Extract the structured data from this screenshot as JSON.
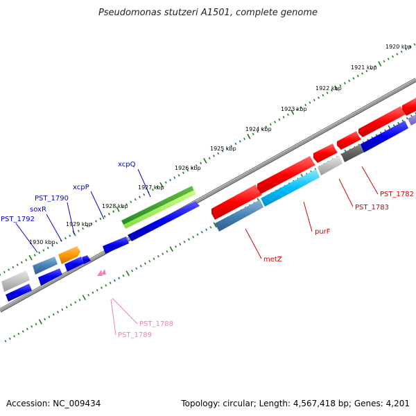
{
  "title": "Pseudomonas stutzeri A1501, complete genome",
  "footer": {
    "accession": "Accession: NC_009434",
    "topology": "Topology: circular; Length: 4,567,418 bp; Genes: 4,201"
  },
  "scale_labels": [
    "1920 kbp",
    "1921 kbp",
    "1922 kbp",
    "1923 kbp",
    "1924 kbp",
    "1925 kbp",
    "1926 kbp",
    "1927 kbp",
    "1928 kbp",
    "1929 kbp",
    "1930 kbp"
  ],
  "gene_labels": [
    {
      "text": "xcpQ",
      "color": "#0000cc"
    },
    {
      "text": "xcpP",
      "color": "#0000cc"
    },
    {
      "text": "PST_1790",
      "color": "#0000cc"
    },
    {
      "text": "soxR",
      "color": "#0000cc"
    },
    {
      "text": "PST_1792",
      "color": "#0000cc"
    },
    {
      "text": "purF",
      "color": "#cc0000"
    },
    {
      "text": "metZ",
      "color": "#cc0000"
    },
    {
      "text": "PST_1783",
      "color": "#cc0000"
    },
    {
      "text": "PST_1782",
      "color": "#cc0000"
    },
    {
      "text": "PST_1788",
      "color": "#f080b8"
    },
    {
      "text": "PST_1789",
      "color": "#f080b8"
    }
  ],
  "colors": {
    "forward": "#ff0000",
    "reverse": "#0000ee",
    "rna": "#33aa33",
    "backbone": "#888888",
    "ticks": "#1a7a1a"
  }
}
